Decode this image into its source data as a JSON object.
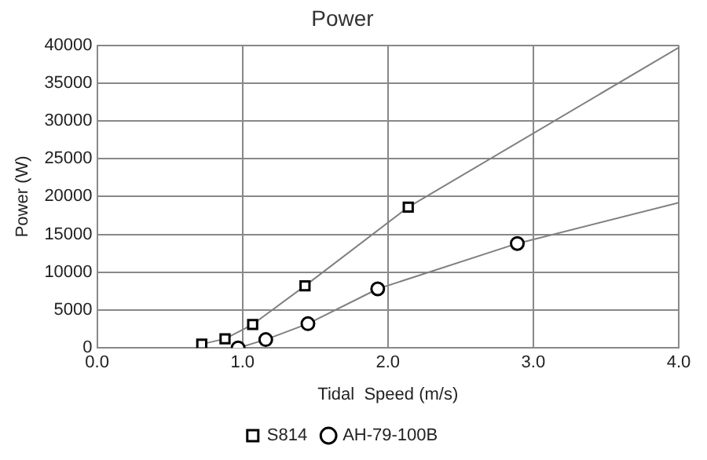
{
  "chart_data": {
    "type": "line",
    "title": "Power",
    "xlabel": "Tidal  Speed (m/s)",
    "ylabel": "Power (W)",
    "xlim": [
      0,
      4
    ],
    "xticks": [
      {
        "value": 0,
        "label": "0.0"
      },
      {
        "value": 1,
        "label": "1.0"
      },
      {
        "value": 2,
        "label": "2.0"
      },
      {
        "value": 3,
        "label": "3.0"
      },
      {
        "value": 4,
        "label": "4.0"
      }
    ],
    "ylim": [
      0,
      40000
    ],
    "yticks": [
      0,
      5000,
      10000,
      15000,
      20000,
      25000,
      30000,
      35000,
      40000
    ],
    "grid": true,
    "legend": "bottom",
    "series": [
      {
        "name": "S814",
        "color": "#808080",
        "marker": "square",
        "x": [
          0.72,
          0.88,
          1.07,
          1.43,
          2.14,
          4.0
        ],
        "values": [
          500,
          1200,
          3100,
          8200,
          18600,
          39700
        ]
      },
      {
        "name": "AH-79-100B",
        "color": "#808080",
        "marker": "circle",
        "x": [
          0.97,
          1.16,
          1.45,
          1.93,
          2.89,
          4.0
        ],
        "values": [
          0,
          1100,
          3200,
          7800,
          13800,
          19200
        ]
      }
    ]
  }
}
